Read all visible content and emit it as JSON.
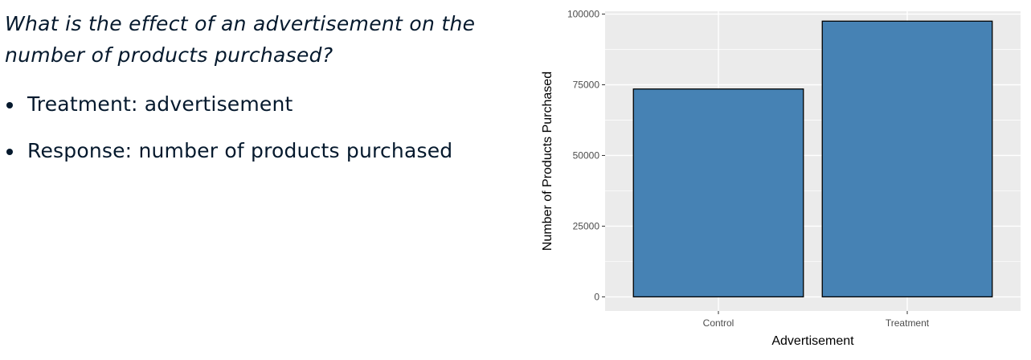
{
  "slide": {
    "question": "What is the effect of an advertisement on the number of products purchased?",
    "bullets": [
      "Treatment: advertisement",
      "Response: number of products purchased"
    ]
  },
  "chart_data": {
    "type": "bar",
    "categories": [
      "Control",
      "Treatment"
    ],
    "values": [
      73500,
      97500
    ],
    "title": "",
    "xlabel": "Advertisement",
    "ylabel": "Number of Products Purchased",
    "ylim": [
      -5000,
      101000
    ],
    "yticks": [
      0,
      25000,
      50000,
      75000,
      100000
    ],
    "grid": true,
    "bar_color": "#4682B4",
    "bar_border": "#000000",
    "panel_background": "#EBEBEB"
  }
}
